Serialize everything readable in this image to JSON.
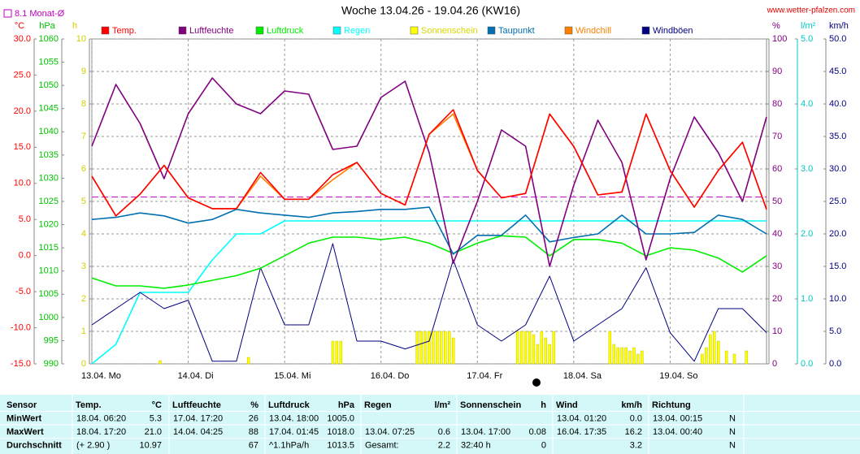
{
  "chart_data": {
    "type": "line",
    "title": "Woche 13.04.26 - 19.04.26 (KW16)",
    "source": "www.wetter-pfalzen.com",
    "monthly_avg": {
      "label": "8.1 Monat-Ø",
      "value": 8.1,
      "color": "#c000c0",
      "axis": 0
    },
    "xlim": [
      0,
      168
    ],
    "xticks": [
      {
        "value": 0,
        "label": "13.04. Mo"
      },
      {
        "value": 24,
        "label": "14.04. Di"
      },
      {
        "value": 48,
        "label": "15.04. Mi"
      },
      {
        "value": 72,
        "label": "16.04. Do"
      },
      {
        "value": 96,
        "label": "17.04. Fr"
      },
      {
        "value": 120,
        "label": "18.04. Sa"
      },
      {
        "value": 144,
        "label": "19.04. So"
      }
    ],
    "grid": true,
    "axes": [
      {
        "label": "°C",
        "color": "#ff0000",
        "side": "left",
        "ylim": [
          -15,
          30
        ],
        "yticks": [
          {
            "value": -15,
            "label": "-15.0"
          },
          {
            "value": -10,
            "label": "-10.0"
          },
          {
            "value": -5,
            "label": "-5.0"
          },
          {
            "value": 0,
            "label": "0.0"
          },
          {
            "value": 5,
            "label": "5.0"
          },
          {
            "value": 10,
            "label": "10.0"
          },
          {
            "value": 15,
            "label": "15.0"
          },
          {
            "value": 20,
            "label": "20.0"
          },
          {
            "value": 25,
            "label": "25.0"
          },
          {
            "value": 30,
            "label": "30.0"
          }
        ]
      },
      {
        "label": "hPa",
        "color": "#00c000",
        "side": "left",
        "ylim": [
          990,
          1060
        ],
        "yticks": [
          990,
          995,
          1000,
          1005,
          1010,
          1015,
          1020,
          1025,
          1030,
          1035,
          1040,
          1045,
          1050,
          1055,
          1060
        ]
      },
      {
        "label": "h",
        "color": "#d0d000",
        "side": "left",
        "ylim": [
          0,
          10
        ],
        "yticks": [
          0,
          1,
          2,
          3,
          4,
          5,
          6,
          7,
          8,
          9,
          10
        ]
      },
      {
        "label": "%",
        "color": "#800080",
        "side": "right",
        "ylim": [
          0,
          100
        ],
        "yticks": [
          0,
          10,
          20,
          30,
          40,
          50,
          60,
          70,
          80,
          90,
          100
        ]
      },
      {
        "label": "l/m²",
        "color": "#00c8c8",
        "side": "right",
        "ylim": [
          0,
          5
        ],
        "yticks": [
          {
            "value": 0,
            "label": "0.0"
          },
          {
            "value": 1,
            "label": "1.0"
          },
          {
            "value": 2,
            "label": "2.0"
          },
          {
            "value": 3,
            "label": "3.0"
          },
          {
            "value": 4,
            "label": "4.0"
          },
          {
            "value": 5,
            "label": "5.0"
          }
        ]
      },
      {
        "label": "km/h",
        "color": "#000080",
        "side": "right",
        "ylim": [
          0,
          50
        ],
        "yticks": [
          {
            "value": 0,
            "label": "0.0"
          },
          {
            "value": 5,
            "label": "5.0"
          },
          {
            "value": 10,
            "label": "10.0"
          },
          {
            "value": 15,
            "label": "15.0"
          },
          {
            "value": 20,
            "label": "20.0"
          },
          {
            "value": 25,
            "label": "25.0"
          },
          {
            "value": 30,
            "label": "30.0"
          },
          {
            "value": 35,
            "label": "35.0"
          },
          {
            "value": 40,
            "label": "40.0"
          },
          {
            "value": 45,
            "label": "45.0"
          },
          {
            "value": 50,
            "label": "50.0"
          }
        ]
      }
    ],
    "x": [
      0,
      6,
      12,
      18,
      24,
      30,
      36,
      42,
      48,
      54,
      60,
      66,
      72,
      78,
      84,
      90,
      96,
      102,
      108,
      114,
      120,
      126,
      132,
      138,
      144,
      150,
      156,
      162,
      168
    ],
    "series": [
      {
        "name": "Temp.",
        "color": "#ff0000",
        "axis": 0,
        "values": [
          11,
          5.5,
          8.5,
          12.5,
          8,
          6.5,
          6.5,
          11.5,
          7.8,
          7.8,
          11.2,
          12.9,
          8.6,
          7,
          16.8,
          20.2,
          11.8,
          8,
          8.6,
          19.6,
          15.1,
          8.4,
          8.8,
          19.6,
          11.8,
          6.7,
          11.8,
          15.7,
          6.4
        ]
      },
      {
        "name": "Luftfeuchte",
        "color": "#800080",
        "axis": 3,
        "values": [
          67,
          86,
          74,
          57,
          77,
          88,
          80,
          77,
          84,
          83,
          66,
          67,
          82,
          87,
          65,
          31,
          50,
          72,
          67,
          30,
          55,
          75,
          62,
          32,
          57,
          76,
          65,
          50,
          76
        ]
      },
      {
        "name": "Luftdruck",
        "color": "#00ee00",
        "axis": 1,
        "values": [
          1008.5,
          1006.8,
          1006.8,
          1006.3,
          1007,
          1008,
          1009,
          1010.6,
          1013.3,
          1016,
          1017.3,
          1017.3,
          1016.8,
          1017.3,
          1016,
          1013.8,
          1016,
          1017.6,
          1017.3,
          1013.3,
          1016.8,
          1016.8,
          1016,
          1013.3,
          1015,
          1014.5,
          1012.8,
          1009.8,
          1013.3
        ]
      },
      {
        "name": "Regen",
        "color": "#00ffff",
        "axis": 4,
        "values": [
          0,
          0.3,
          1.1,
          1.1,
          1.1,
          1.6,
          2,
          2,
          2.2,
          2.2,
          2.2,
          2.2,
          2.2,
          2.2,
          2.2,
          2.2,
          2.2,
          2.2,
          2.2,
          2.2,
          2.2,
          2.2,
          2.2,
          2.2,
          2.2,
          2.2,
          2.2,
          2.2,
          2.2
        ]
      },
      {
        "name": "Sonnenschein",
        "color": "#ffff00",
        "axis": 2,
        "kind": "bar",
        "x": [
          17,
          39,
          60,
          61,
          62,
          81,
          82,
          83,
          84,
          85,
          86,
          87,
          88,
          89,
          90,
          106,
          107,
          108,
          109,
          110,
          111,
          112,
          113,
          114,
          115,
          129,
          130,
          131,
          132,
          133,
          134,
          135,
          136,
          137,
          152,
          153,
          154,
          155,
          156,
          158,
          160,
          163
        ],
        "values": [
          0.1,
          0.2,
          0.7,
          0.7,
          0.7,
          1,
          1,
          1,
          1,
          1,
          1,
          1,
          1,
          1,
          0.8,
          1,
          1,
          1,
          1,
          0.9,
          0.6,
          1,
          0.8,
          0.6,
          1,
          1,
          0.6,
          0.5,
          0.5,
          0.5,
          0.4,
          0.5,
          0.3,
          0.4,
          0.3,
          0.5,
          0.9,
          1,
          0.7,
          0.4,
          0.3,
          0.4
        ]
      },
      {
        "name": "Taupunkt",
        "color": "#0070b0",
        "axis": 0,
        "values": [
          5,
          5.3,
          5.9,
          5.5,
          4.5,
          5,
          6.4,
          5.9,
          5.6,
          5.3,
          5.9,
          6.1,
          6.4,
          6.4,
          6.7,
          0.2,
          2.8,
          2.8,
          5.6,
          1.9,
          2.5,
          3,
          5.6,
          3,
          3,
          3.2,
          5.6,
          5,
          3
        ]
      },
      {
        "name": "Windchill",
        "color": "#ff8000",
        "axis": 0,
        "values": [
          11,
          5.5,
          8.5,
          12.5,
          8,
          6.5,
          6.5,
          11,
          7.8,
          7.8,
          10.5,
          12.9,
          8.6,
          7,
          16.8,
          19.6,
          11.8,
          8,
          8.6,
          19.6,
          15.1,
          8.4,
          8.8,
          19.6,
          11.8,
          6.7,
          11.8,
          15.7,
          6.4
        ]
      },
      {
        "name": "Windböen",
        "color": "#000080",
        "axis": 5,
        "values": [
          6,
          8.5,
          11,
          8.5,
          9.8,
          0.4,
          0.4,
          14.8,
          6,
          6,
          18.5,
          3.5,
          3.5,
          2.3,
          3.5,
          16,
          6,
          3.5,
          6,
          13.5,
          3.5,
          6,
          8.5,
          14.8,
          4.8,
          0.4,
          8.5,
          8.5,
          4.8
        ]
      }
    ]
  },
  "table": {
    "header": {
      "label": "Sensor",
      "columns": [
        [
          "Temp.",
          "°C"
        ],
        [
          "Luftfeuchte",
          "%"
        ],
        [
          "Luftdruck",
          "hPa"
        ],
        [
          "Regen",
          "l/m²"
        ],
        [
          "Sonnenschein",
          "h"
        ],
        [
          "Wind",
          "km/h"
        ],
        [
          "Richtung",
          null
        ]
      ]
    },
    "rows": [
      {
        "label": "MinWert",
        "cells": [
          [
            "18.04. 06:20",
            "5.3"
          ],
          [
            "17.04. 17:20",
            "26"
          ],
          [
            "13.04. 18:00",
            "1005.0"
          ],
          null,
          null,
          [
            "13.04. 01:20",
            "0.0"
          ],
          [
            "13.04. 00:15",
            "N"
          ]
        ]
      },
      {
        "label": "MaxWert",
        "cells": [
          [
            "18.04. 17:20",
            "21.0"
          ],
          [
            "14.04. 04:25",
            "88"
          ],
          [
            "17.04. 01:45",
            "1018.0"
          ],
          [
            "13.04. 07:25",
            "0.6"
          ],
          [
            "13.04. 17:00",
            "0.08"
          ],
          [
            "16.04. 17:35",
            "16.2"
          ],
          [
            "13.04. 00:40",
            "N"
          ]
        ]
      },
      {
        "label": "Durchschnitt",
        "cells": [
          [
            "(+ 2.90 )",
            "10.97"
          ],
          [
            null,
            "67"
          ],
          [
            "^1.1hPa/h",
            "1013.5"
          ],
          [
            "Gesamt:",
            "2.2"
          ],
          [
            "32:40 h",
            "0"
          ],
          [
            null,
            "3.2"
          ],
          [
            null,
            "N"
          ]
        ]
      }
    ]
  }
}
